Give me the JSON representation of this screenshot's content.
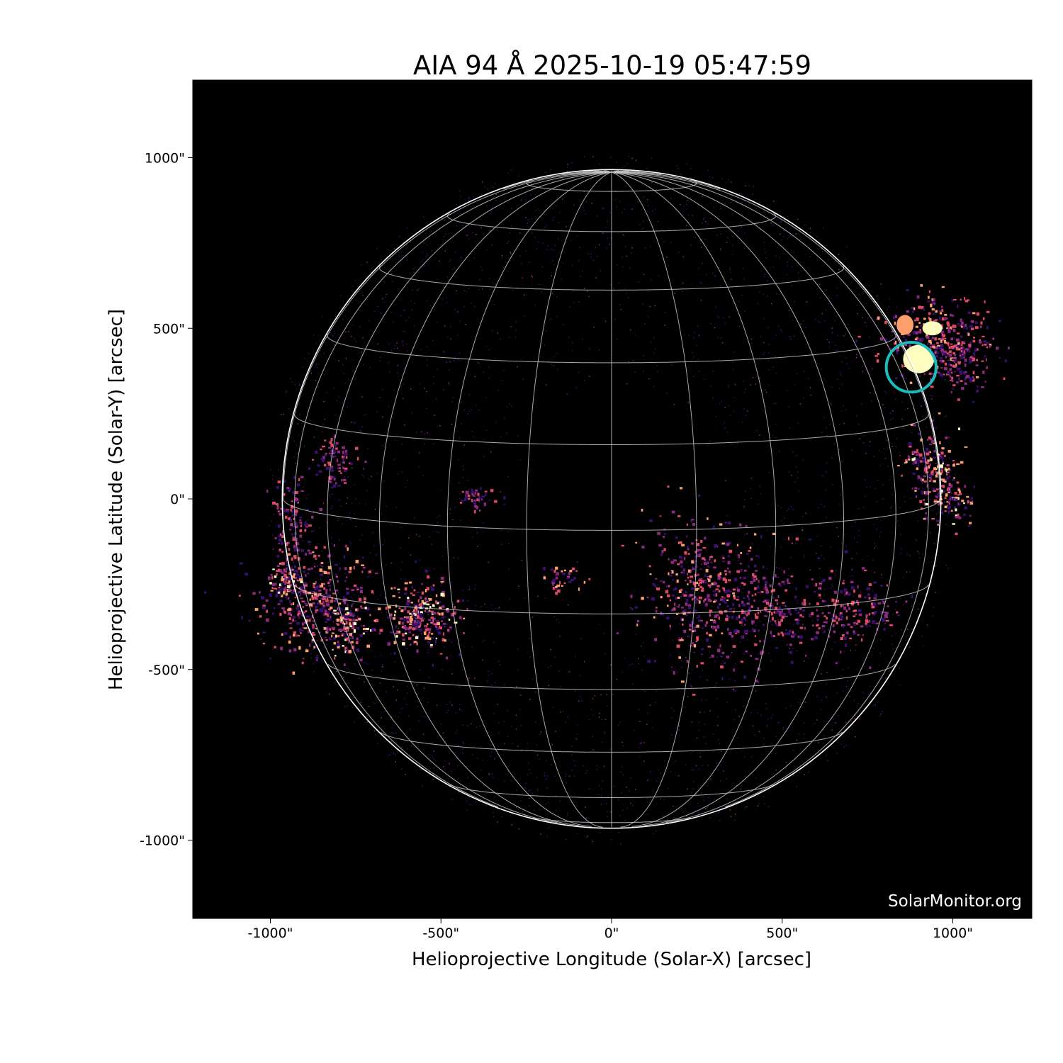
{
  "title": "AIA 94 Å 2025-10-19 05:47:59",
  "watermark": "SolarMonitor.org",
  "x_axis": {
    "label": "Helioprojective Longitude (Solar-X) [arcsec]",
    "ticks": [
      {
        "value": -1000,
        "label": "-1000\""
      },
      {
        "value": -500,
        "label": "-500\""
      },
      {
        "value": 0,
        "label": "0\""
      },
      {
        "value": 500,
        "label": "500\""
      },
      {
        "value": 1000,
        "label": "1000\""
      }
    ],
    "range": [
      -1230,
      1230
    ]
  },
  "y_axis": {
    "label": "Helioprojective Latitude (Solar-Y) [arcsec]",
    "ticks": [
      {
        "value": 1000,
        "label": "1000\""
      },
      {
        "value": 500,
        "label": "500\""
      },
      {
        "value": 0,
        "label": "0\""
      },
      {
        "value": -500,
        "label": "-500\""
      },
      {
        "value": -1000,
        "label": "-1000\""
      }
    ],
    "range": [
      -1230,
      1230
    ]
  },
  "sun": {
    "radius_arcsec": 962,
    "b0_deg": 5.5,
    "grid_spacing_deg": 15
  },
  "highlight_circle": {
    "x_arcsec": 878,
    "y_arcsec": 386,
    "radius_arcsec": 73,
    "color": "#1bbcbc"
  },
  "colors": {
    "background": "#000000",
    "grid": "#c8c8c8",
    "limb": "#ffffff",
    "colormap": [
      "#3b0f70",
      "#8c2981",
      "#de4968",
      "#fe9f6d",
      "#fcfdbf"
    ]
  }
}
